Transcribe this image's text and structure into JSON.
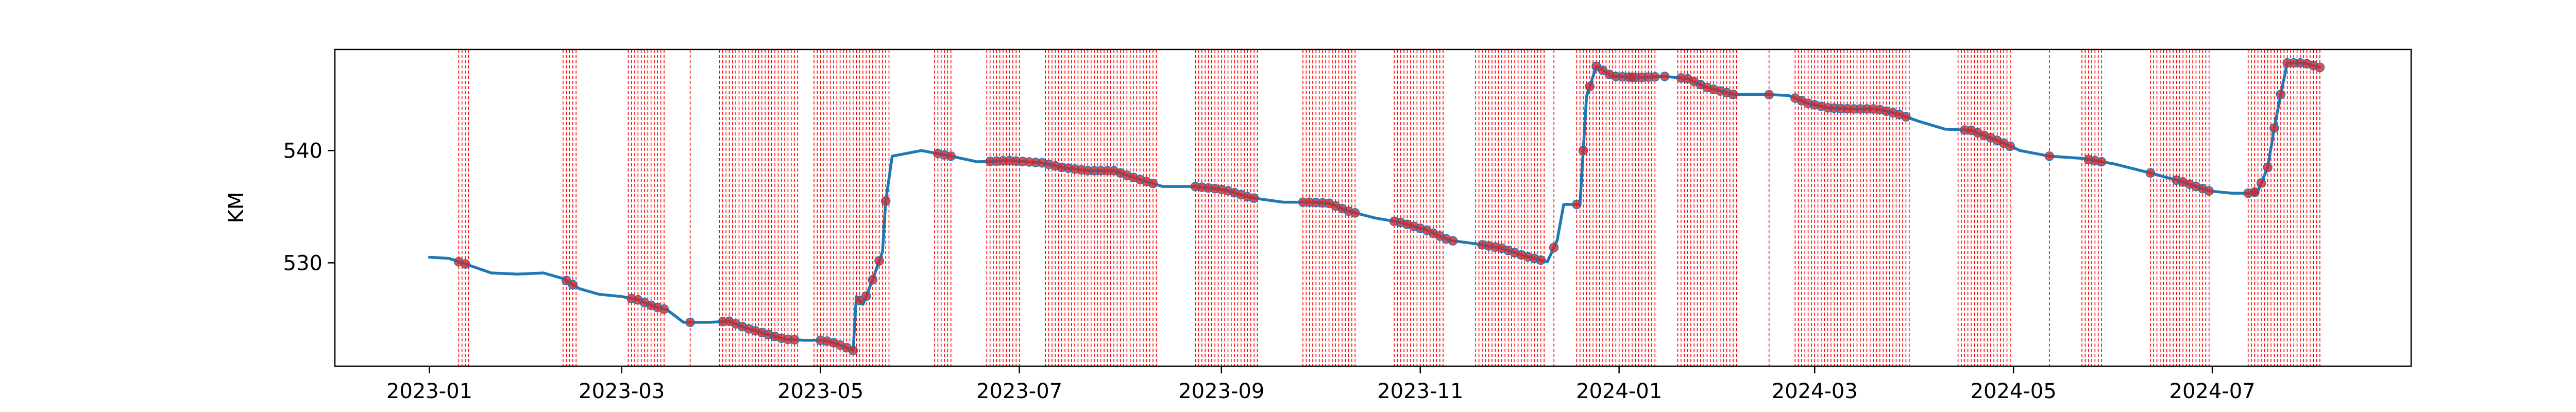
{
  "colors": {
    "line": "#1f77b4",
    "marker": "#d62728",
    "vline": "#ff0000",
    "frame": "#000000",
    "background": "#ffffff"
  },
  "chart_data": {
    "type": "line",
    "title": "",
    "xlabel": "",
    "ylabel": "KM",
    "x_axis": "date",
    "xlim": [
      "2022-12-03",
      "2024-08-31"
    ],
    "ylim": [
      520.8,
      549.0
    ],
    "grid": false,
    "legend": "none",
    "x_ticks": [
      "2023-01",
      "2023-03",
      "2023-05",
      "2023-07",
      "2023-09",
      "2023-11",
      "2024-01",
      "2024-03",
      "2024-05",
      "2024-07"
    ],
    "x_tick_dates": [
      "2023-01-01",
      "2023-03-01",
      "2023-05-01",
      "2023-07-01",
      "2023-09-01",
      "2023-11-01",
      "2024-01-01",
      "2024-03-01",
      "2024-05-01",
      "2024-07-01"
    ],
    "y_ticks": [
      530,
      540
    ],
    "series": [
      {
        "kind": "line",
        "points": [
          [
            "2023-01-01",
            530.5
          ],
          [
            "2023-01-07",
            530.4
          ],
          [
            "2023-01-13",
            529.8
          ],
          [
            "2023-01-20",
            529.1
          ],
          [
            "2023-01-28",
            529.0
          ],
          [
            "2023-02-05",
            529.1
          ],
          [
            "2023-02-11",
            528.6
          ],
          [
            "2023-02-16",
            527.7
          ],
          [
            "2023-02-22",
            527.2
          ],
          [
            "2023-03-01",
            527.0
          ],
          [
            "2023-03-06",
            526.7
          ],
          [
            "2023-03-11",
            526.1
          ],
          [
            "2023-03-15",
            525.8
          ],
          [
            "2023-03-20",
            524.7
          ],
          [
            "2023-03-28",
            524.7
          ],
          [
            "2023-04-03",
            524.8
          ],
          [
            "2023-04-08",
            524.2
          ],
          [
            "2023-04-14",
            523.7
          ],
          [
            "2023-04-20",
            523.2
          ],
          [
            "2023-04-26",
            523.1
          ],
          [
            "2023-05-02",
            523.1
          ],
          [
            "2023-05-06",
            522.8
          ],
          [
            "2023-05-11",
            522.2
          ],
          [
            "2023-05-12",
            527.0
          ],
          [
            "2023-05-14",
            526.3
          ],
          [
            "2023-05-17",
            528.5
          ],
          [
            "2023-05-20",
            531.0
          ],
          [
            "2023-05-21",
            535.5
          ],
          [
            "2023-05-23",
            539.5
          ],
          [
            "2023-06-01",
            540.0
          ],
          [
            "2023-06-10",
            539.5
          ],
          [
            "2023-06-18",
            539.0
          ],
          [
            "2023-06-28",
            539.1
          ],
          [
            "2023-07-08",
            538.9
          ],
          [
            "2023-07-14",
            538.5
          ],
          [
            "2023-07-22",
            538.2
          ],
          [
            "2023-07-30",
            538.2
          ],
          [
            "2023-08-06",
            537.5
          ],
          [
            "2023-08-14",
            536.8
          ],
          [
            "2023-08-24",
            536.8
          ],
          [
            "2023-09-02",
            536.5
          ],
          [
            "2023-09-10",
            535.8
          ],
          [
            "2023-09-20",
            535.4
          ],
          [
            "2023-09-28",
            535.4
          ],
          [
            "2023-10-04",
            535.3
          ],
          [
            "2023-10-10",
            534.6
          ],
          [
            "2023-10-18",
            534.0
          ],
          [
            "2023-10-26",
            533.6
          ],
          [
            "2023-11-03",
            532.9
          ],
          [
            "2023-11-10",
            532.0
          ],
          [
            "2023-11-18",
            531.7
          ],
          [
            "2023-11-26",
            531.3
          ],
          [
            "2023-12-03",
            530.6
          ],
          [
            "2023-12-10",
            530.1
          ],
          [
            "2023-12-13",
            532.0
          ],
          [
            "2023-12-15",
            535.2
          ],
          [
            "2023-12-20",
            535.2
          ],
          [
            "2023-12-22",
            544.8
          ],
          [
            "2023-12-25",
            547.5
          ],
          [
            "2023-12-30",
            546.6
          ],
          [
            "2024-01-07",
            546.5
          ],
          [
            "2024-01-15",
            546.6
          ],
          [
            "2024-01-22",
            546.4
          ],
          [
            "2024-01-28",
            545.6
          ],
          [
            "2024-02-05",
            545.0
          ],
          [
            "2024-02-14",
            545.0
          ],
          [
            "2024-02-22",
            544.9
          ],
          [
            "2024-02-28",
            544.2
          ],
          [
            "2024-03-05",
            543.8
          ],
          [
            "2024-03-12",
            543.7
          ],
          [
            "2024-03-20",
            543.7
          ],
          [
            "2024-03-26",
            543.3
          ],
          [
            "2024-04-02",
            542.6
          ],
          [
            "2024-04-10",
            541.9
          ],
          [
            "2024-04-18",
            541.8
          ],
          [
            "2024-04-26",
            540.9
          ],
          [
            "2024-05-03",
            540.0
          ],
          [
            "2024-05-12",
            539.5
          ],
          [
            "2024-05-22",
            539.3
          ],
          [
            "2024-06-01",
            538.8
          ],
          [
            "2024-06-12",
            538.0
          ],
          [
            "2024-06-22",
            537.2
          ],
          [
            "2024-06-30",
            536.4
          ],
          [
            "2024-07-07",
            536.2
          ],
          [
            "2024-07-13",
            536.2
          ],
          [
            "2024-07-15",
            536.4
          ],
          [
            "2024-07-18",
            538.5
          ],
          [
            "2024-07-20",
            542.0
          ],
          [
            "2024-07-22",
            545.0
          ],
          [
            "2024-07-24",
            547.8
          ],
          [
            "2024-07-29",
            547.8
          ],
          [
            "2024-08-03",
            547.4
          ]
        ]
      },
      {
        "kind": "markers",
        "ranges": [
          [
            "2023-01-10",
            "2023-01-13"
          ],
          [
            "2023-02-12",
            "2023-02-15"
          ],
          [
            "2023-03-04",
            "2023-03-14"
          ],
          [
            "2023-04-01",
            "2023-04-24"
          ],
          [
            "2023-05-01",
            "2023-05-22"
          ],
          [
            "2023-06-06",
            "2023-06-10"
          ],
          [
            "2023-06-22",
            "2023-08-12"
          ],
          [
            "2023-08-24",
            "2023-09-12"
          ],
          [
            "2023-09-26",
            "2023-10-12"
          ],
          [
            "2023-10-24",
            "2023-11-12"
          ],
          [
            "2023-11-20",
            "2023-12-09"
          ],
          [
            "2023-12-19",
            "2024-01-12"
          ],
          [
            "2024-01-20",
            "2024-02-06"
          ],
          [
            "2024-02-24",
            "2024-03-30"
          ],
          [
            "2024-04-16",
            "2024-04-30"
          ],
          [
            "2024-05-12",
            "2024-05-13"
          ],
          [
            "2024-05-24",
            "2024-05-28"
          ],
          [
            "2024-06-12",
            "2024-06-13"
          ],
          [
            "2024-06-20",
            "2024-06-30"
          ],
          [
            "2024-07-12",
            "2024-08-03"
          ]
        ],
        "singles": [
          "2023-03-22",
          "2023-12-12",
          "2024-01-05",
          "2024-01-15",
          "2024-02-16",
          "2024-07-14"
        ]
      },
      {
        "kind": "vlines",
        "ranges": [
          [
            "2023-01-10",
            "2023-01-13"
          ],
          [
            "2023-02-11",
            "2023-02-15"
          ],
          [
            "2023-03-03",
            "2023-03-14"
          ],
          [
            "2023-03-31",
            "2023-04-24"
          ],
          [
            "2023-04-29",
            "2023-05-22"
          ],
          [
            "2023-06-05",
            "2023-06-10"
          ],
          [
            "2023-06-21",
            "2023-07-01"
          ],
          [
            "2023-07-09",
            "2023-08-12"
          ],
          [
            "2023-08-24",
            "2023-09-12"
          ],
          [
            "2023-09-26",
            "2023-10-12"
          ],
          [
            "2023-10-24",
            "2023-11-08"
          ],
          [
            "2023-11-18",
            "2023-12-09"
          ],
          [
            "2023-12-19",
            "2024-01-12"
          ],
          [
            "2024-01-19",
            "2024-02-06"
          ],
          [
            "2024-02-24",
            "2024-03-30"
          ],
          [
            "2024-04-14",
            "2024-04-30"
          ],
          [
            "2024-05-22",
            "2024-05-28"
          ],
          [
            "2024-06-12",
            "2024-06-30"
          ],
          [
            "2024-07-12",
            "2024-08-03"
          ]
        ],
        "singles": [
          "2023-03-22",
          "2023-12-12",
          "2024-02-16",
          "2024-05-12",
          "2024-07-14"
        ]
      }
    ]
  }
}
